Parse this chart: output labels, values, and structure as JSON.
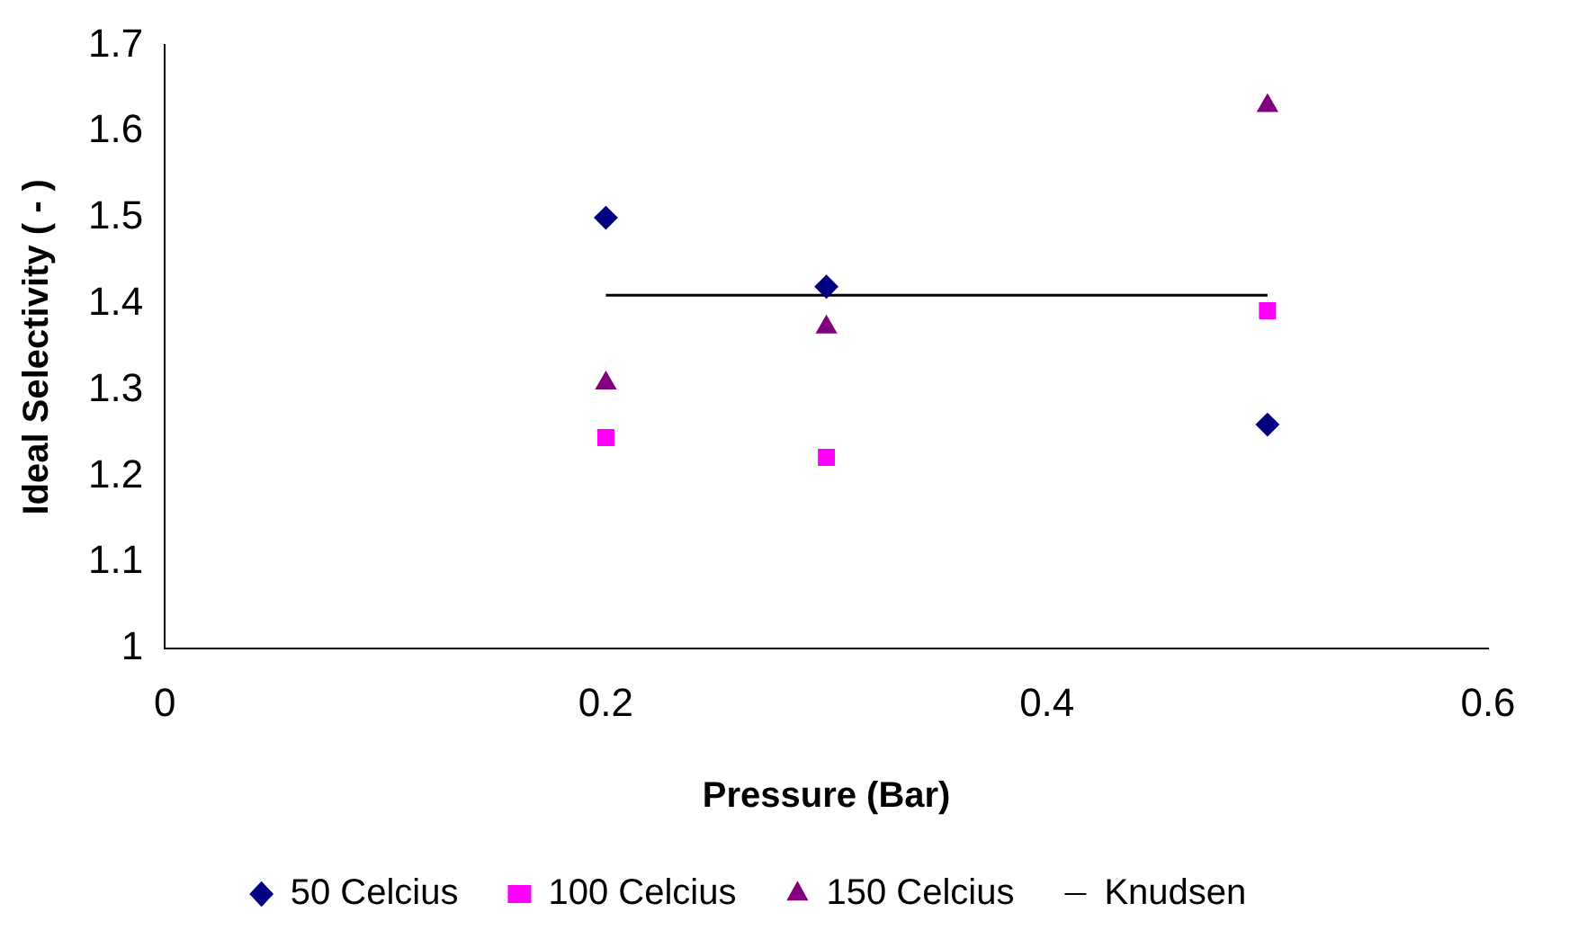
{
  "chart_data": {
    "type": "scatter",
    "xlabel": "Pressure (Bar)",
    "ylabel": "Ideal Selectivity ( - )",
    "xlim": [
      0,
      0.6
    ],
    "xticks": [
      0,
      0.2,
      0.4,
      0.6
    ],
    "ylim": [
      1,
      1.7
    ],
    "yticks": [
      1,
      1.1,
      1.2,
      1.3,
      1.4,
      1.5,
      1.6,
      1.7
    ],
    "grid": false,
    "legend": "bottom",
    "x": [
      0.2,
      0.3,
      0.5
    ],
    "series": [
      {
        "name": "50 Celcius",
        "color": "#000080",
        "marker": "diamond",
        "values": [
          1.5,
          1.42,
          1.26
        ]
      },
      {
        "name": "100 Celcius",
        "color": "#ff00ff",
        "marker": "square",
        "values": [
          1.245,
          1.222,
          1.392
        ]
      },
      {
        "name": "150 Celcius",
        "color": "#800080",
        "marker": "triangle",
        "values": [
          1.308,
          1.373,
          1.63
        ]
      },
      {
        "name": "Knudsen",
        "type": "line",
        "color": "#000000",
        "marker": "none",
        "line_style": "solid",
        "x": [
          0.2,
          0.5
        ],
        "values": [
          1.41,
          1.41
        ]
      }
    ]
  }
}
